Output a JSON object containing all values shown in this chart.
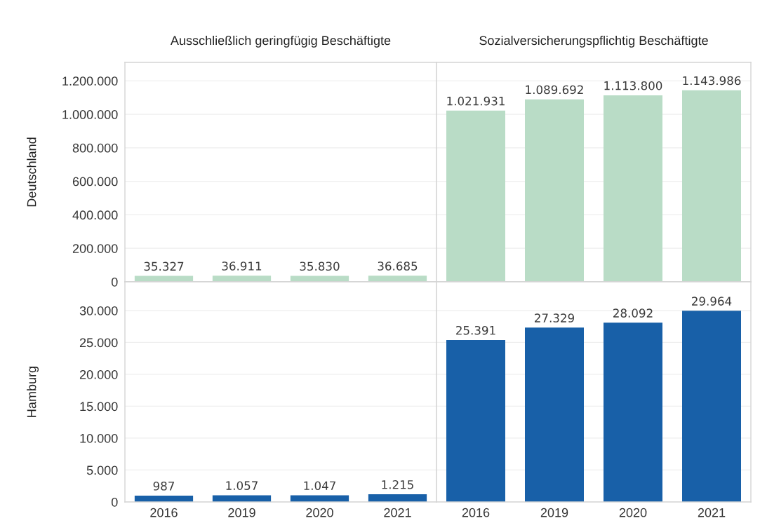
{
  "chart_data": [
    {
      "type": "bar",
      "title": "Ausschließlich geringfügig Beschäftigte",
      "ylabel": "Deutschland",
      "categories": [
        "2016",
        "2019",
        "2020",
        "2021"
      ],
      "values": [
        35327,
        36911,
        35830,
        36685
      ],
      "value_labels": [
        "35.327",
        "36.911",
        "35.830",
        "36.685"
      ],
      "color": "#b9dcc6",
      "ylim": [
        0,
        1310000
      ],
      "yticks": [
        0,
        {
          "value": 200000,
          "label": "200.000"
        },
        {
          "value": 400000,
          "label": "400.000"
        },
        {
          "value": 600000,
          "label": "600.000"
        },
        {
          "value": 800000,
          "label": "800.000"
        },
        {
          "value": 1000000,
          "label": "1.000.000"
        },
        {
          "value": 1200000,
          "label": "1.200.000"
        }
      ],
      "grid": "y",
      "tick_labels": "y"
    },
    {
      "type": "bar",
      "title": "Sozialversicherungspflichtig Beschäftigte",
      "categories": [
        "2016",
        "2019",
        "2020",
        "2021"
      ],
      "values": [
        1021931,
        1089692,
        1113800,
        1143986
      ],
      "value_labels": [
        "1.021.931",
        "1.089.692",
        "1.113.800",
        "1.143.986"
      ],
      "color": "#b9dcc6",
      "ylim": [
        0,
        1310000
      ],
      "yticks": [
        {
          "value": 0,
          "label": null
        },
        {
          "value": 200000,
          "label": null
        },
        {
          "value": 400000,
          "label": null
        },
        {
          "value": 600000,
          "label": null
        },
        {
          "value": 800000,
          "label": null
        },
        {
          "value": 1000000,
          "label": null
        },
        {
          "value": 1200000,
          "label": null
        }
      ],
      "grid": "y",
      "tick_labels": false
    },
    {
      "type": "bar",
      "ylabel": "Hamburg",
      "categories": [
        "2016",
        "2019",
        "2020",
        "2021"
      ],
      "values": [
        987,
        1057,
        1047,
        1215
      ],
      "value_labels": [
        "987",
        "1.057",
        "1.047",
        "1.215"
      ],
      "color": "#1860a8",
      "ylim": [
        0,
        34500
      ],
      "yticks": [
        0,
        {
          "value": 5000,
          "label": "5.000"
        },
        {
          "value": 10000,
          "label": "10.000"
        },
        {
          "value": 15000,
          "label": "15.000"
        },
        {
          "value": 20000,
          "label": "20.000"
        },
        {
          "value": 25000,
          "label": "25.000"
        },
        {
          "value": 30000,
          "label": "30.000"
        }
      ],
      "grid": "y"
    },
    {
      "type": "bar",
      "categories": [
        "2016",
        "2019",
        "2020",
        "2021"
      ],
      "values": [
        25391,
        27329,
        28092,
        29964
      ],
      "value_labels": [
        "25.391",
        "27.329",
        "28.092",
        "29.964"
      ],
      "color": "#1860a8",
      "ylim": [
        0,
        34500
      ],
      "yticks": [
        {
          "value": 0,
          "label": null
        },
        {
          "value": 5000,
          "label": null
        },
        {
          "value": 10000,
          "label": null
        },
        {
          "value": 15000,
          "label": null
        },
        {
          "value": 20000,
          "label": null
        },
        {
          "value": 25000,
          "label": null
        },
        {
          "value": 30000,
          "label": null
        }
      ],
      "grid": "y",
      "tick_labels": "x"
    }
  ]
}
